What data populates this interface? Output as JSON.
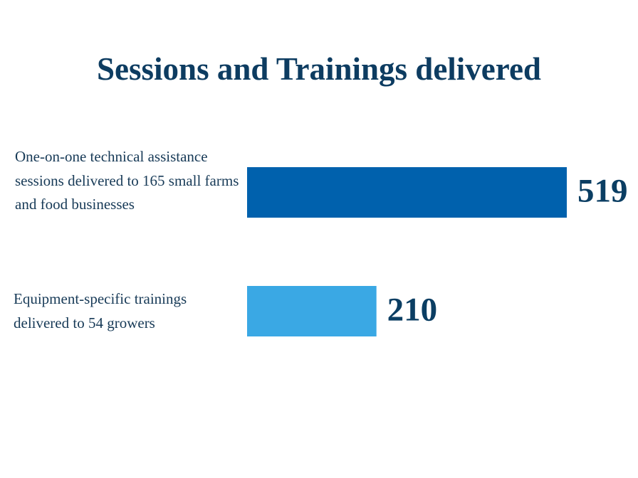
{
  "chart_data": {
    "type": "bar",
    "orientation": "horizontal",
    "title": "Sessions and Trainings delivered",
    "categories": [
      "One-on-one technical assistance sessions delivered to 165 small farms and food businesses",
      "Equipment-specific trainings delivered to 54 growers"
    ],
    "values": [
      519,
      210
    ],
    "colors": [
      "#0061ad",
      "#3aa8e4"
    ]
  }
}
